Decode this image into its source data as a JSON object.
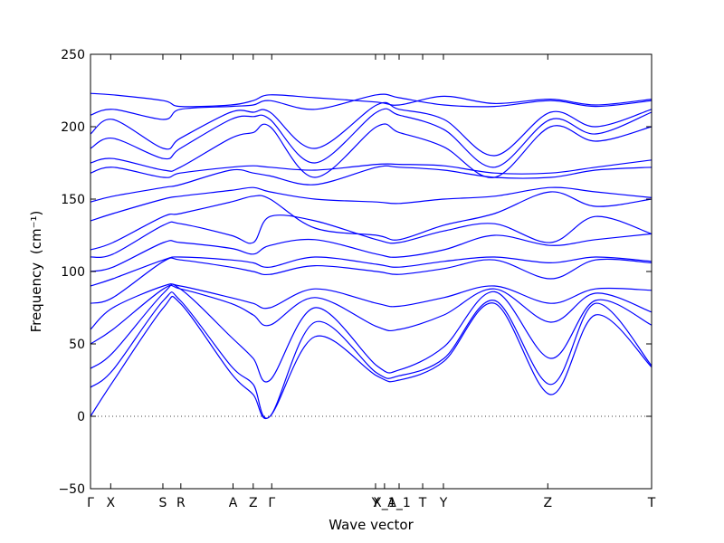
{
  "chart_data": {
    "type": "line",
    "title": "",
    "xlabel": "Wave vector",
    "ylabel": "Frequency",
    "ylabel_unit": "(cm⁻¹)",
    "ylim": [
      -50,
      250
    ],
    "yticks": [
      -50,
      0,
      50,
      100,
      150,
      200,
      250
    ],
    "xlim": [
      0,
      1
    ],
    "x_ticks": [
      {
        "label": "Γ",
        "x": 0.0
      },
      {
        "label": "X",
        "x": 0.036
      },
      {
        "label": "S",
        "x": 0.129
      },
      {
        "label": "R",
        "x": 0.161
      },
      {
        "label": "A",
        "x": 0.254
      },
      {
        "label": "Z",
        "x": 0.29
      },
      {
        "label": "Γ",
        "x": 0.323
      },
      {
        "label": "Y",
        "x": 0.508
      },
      {
        "label": "X_1",
        "x": 0.524
      },
      {
        "label": "A_1",
        "x": 0.55
      },
      {
        "label": "T",
        "x": 0.592
      },
      {
        "label": "Y",
        "x": 0.629
      },
      {
        "label": "Z",
        "x": 0.815
      },
      {
        "label": "T",
        "x": 1.0
      }
    ],
    "zero_line": {
      "y": 0,
      "style": "dotted"
    },
    "grid": false,
    "legend": "none",
    "line_color": "#0000ff",
    "series": [
      {
        "x": [
          0,
          0.04,
          0.13,
          0.16,
          0.25,
          0.29,
          0.32,
          0.4,
          0.51,
          0.55,
          0.63,
          0.72,
          0.82,
          0.9,
          1.0
        ],
        "values": [
          0,
          24,
          75,
          78,
          30,
          15,
          0,
          55,
          28,
          25,
          38,
          78,
          15,
          70,
          34
        ]
      },
      {
        "x": [
          0,
          0.04,
          0.13,
          0.16,
          0.25,
          0.29,
          0.32,
          0.4,
          0.51,
          0.55,
          0.63,
          0.72,
          0.82,
          0.9,
          1.0
        ],
        "values": [
          20,
          32,
          80,
          80,
          35,
          22,
          0,
          65,
          30,
          28,
          40,
          80,
          22,
          78,
          35
        ]
      },
      {
        "x": [
          0,
          0.04,
          0.13,
          0.16,
          0.25,
          0.29,
          0.32,
          0.4,
          0.51,
          0.55,
          0.63,
          0.72,
          0.82,
          0.9,
          1.0
        ],
        "values": [
          33,
          44,
          85,
          88,
          55,
          40,
          25,
          75,
          35,
          32,
          48,
          86,
          40,
          80,
          63
        ]
      },
      {
        "x": [
          0,
          0.04,
          0.13,
          0.16,
          0.25,
          0.29,
          0.32,
          0.4,
          0.51,
          0.55,
          0.63,
          0.72,
          0.82,
          0.9,
          1.0
        ],
        "values": [
          50,
          60,
          88,
          88,
          78,
          70,
          63,
          82,
          62,
          60,
          70,
          88,
          65,
          85,
          72
        ]
      },
      {
        "x": [
          0,
          0.04,
          0.13,
          0.16,
          0.25,
          0.29,
          0.32,
          0.4,
          0.51,
          0.55,
          0.63,
          0.72,
          0.82,
          0.9,
          1.0
        ],
        "values": [
          60,
          75,
          90,
          90,
          82,
          78,
          75,
          88,
          78,
          76,
          82,
          90,
          78,
          88,
          87
        ]
      },
      {
        "x": [
          0,
          0.04,
          0.13,
          0.16,
          0.25,
          0.29,
          0.32,
          0.4,
          0.51,
          0.55,
          0.63,
          0.72,
          0.82,
          0.9,
          1.0
        ],
        "values": [
          78,
          82,
          107,
          108,
          103,
          100,
          98,
          104,
          100,
          98,
          102,
          108,
          95,
          108,
          106
        ]
      },
      {
        "x": [
          0,
          0.04,
          0.13,
          0.16,
          0.25,
          0.29,
          0.32,
          0.4,
          0.51,
          0.55,
          0.63,
          0.72,
          0.82,
          0.9,
          1.0
        ],
        "values": [
          90,
          95,
          108,
          110,
          108,
          106,
          103,
          110,
          105,
          103,
          107,
          110,
          106,
          110,
          107
        ]
      },
      {
        "x": [
          0,
          0.04,
          0.13,
          0.16,
          0.25,
          0.29,
          0.32,
          0.4,
          0.51,
          0.55,
          0.63,
          0.72,
          0.82,
          0.9,
          1.0
        ],
        "values": [
          100,
          103,
          120,
          120,
          116,
          112,
          118,
          122,
          112,
          110,
          115,
          125,
          118,
          122,
          126
        ]
      },
      {
        "x": [
          0,
          0.04,
          0.13,
          0.16,
          0.25,
          0.29,
          0.32,
          0.4,
          0.51,
          0.55,
          0.63,
          0.72,
          0.82,
          0.9,
          1.0
        ],
        "values": [
          110,
          112,
          132,
          133,
          125,
          120,
          138,
          135,
          122,
          120,
          128,
          133,
          120,
          138,
          126
        ]
      },
      {
        "x": [
          0,
          0.04,
          0.13,
          0.16,
          0.25,
          0.29,
          0.32,
          0.4,
          0.51,
          0.55,
          0.63,
          0.72,
          0.82,
          0.9,
          1.0
        ],
        "values": [
          115,
          120,
          138,
          140,
          148,
          152,
          150,
          130,
          125,
          122,
          132,
          140,
          155,
          145,
          150
        ]
      },
      {
        "x": [
          0,
          0.04,
          0.13,
          0.16,
          0.25,
          0.29,
          0.32,
          0.4,
          0.51,
          0.55,
          0.63,
          0.72,
          0.82,
          0.9,
          1.0
        ],
        "values": [
          135,
          140,
          150,
          152,
          156,
          158,
          155,
          150,
          148,
          147,
          150,
          152,
          158,
          155,
          151
        ]
      },
      {
        "x": [
          0,
          0.04,
          0.13,
          0.16,
          0.25,
          0.29,
          0.32,
          0.4,
          0.51,
          0.55,
          0.63,
          0.72,
          0.82,
          0.9,
          1.0
        ],
        "values": [
          148,
          152,
          158,
          160,
          170,
          168,
          166,
          160,
          172,
          172,
          170,
          165,
          165,
          170,
          172
        ]
      },
      {
        "x": [
          0,
          0.04,
          0.13,
          0.16,
          0.25,
          0.29,
          0.32,
          0.4,
          0.51,
          0.55,
          0.63,
          0.72,
          0.82,
          0.9,
          1.0
        ],
        "values": [
          168,
          172,
          165,
          168,
          172,
          173,
          172,
          170,
          174,
          174,
          173,
          168,
          168,
          172,
          177
        ]
      },
      {
        "x": [
          0,
          0.04,
          0.13,
          0.16,
          0.25,
          0.29,
          0.32,
          0.4,
          0.51,
          0.55,
          0.63,
          0.72,
          0.82,
          0.9,
          1.0
        ],
        "values": [
          175,
          178,
          170,
          172,
          192,
          196,
          200,
          165,
          200,
          196,
          186,
          165,
          200,
          190,
          200
        ]
      },
      {
        "x": [
          0,
          0.04,
          0.13,
          0.16,
          0.25,
          0.29,
          0.32,
          0.4,
          0.51,
          0.55,
          0.63,
          0.72,
          0.82,
          0.9,
          1.0
        ],
        "values": [
          185,
          192,
          178,
          185,
          205,
          207,
          205,
          175,
          210,
          208,
          198,
          172,
          205,
          195,
          210
        ]
      },
      {
        "x": [
          0,
          0.04,
          0.13,
          0.16,
          0.25,
          0.29,
          0.32,
          0.4,
          0.51,
          0.55,
          0.63,
          0.72,
          0.82,
          0.9,
          1.0
        ],
        "values": [
          195,
          205,
          185,
          192,
          210,
          210,
          210,
          185,
          215,
          212,
          205,
          180,
          210,
          200,
          212
        ]
      },
      {
        "x": [
          0,
          0.04,
          0.13,
          0.16,
          0.25,
          0.29,
          0.32,
          0.4,
          0.51,
          0.55,
          0.63,
          0.72,
          0.82,
          0.9,
          1.0
        ],
        "values": [
          208,
          212,
          205,
          212,
          214,
          215,
          218,
          212,
          222,
          220,
          215,
          214,
          218,
          214,
          218
        ]
      },
      {
        "x": [
          0,
          0.04,
          0.13,
          0.16,
          0.25,
          0.29,
          0.32,
          0.4,
          0.51,
          0.55,
          0.63,
          0.72,
          0.82,
          0.9,
          1.0
        ],
        "values": [
          223,
          222,
          218,
          214,
          215,
          218,
          222,
          220,
          217,
          215,
          221,
          216,
          219,
          215,
          219
        ]
      }
    ]
  }
}
